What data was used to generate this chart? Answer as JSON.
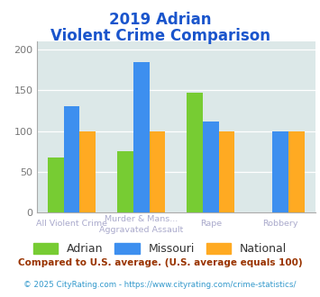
{
  "title_line1": "2019 Adrian",
  "title_line2": "Violent Crime Comparison",
  "series": {
    "Adrian": [
      68,
      75,
      147,
      0
    ],
    "Missouri": [
      130,
      185,
      112,
      99
    ],
    "National": [
      100,
      100,
      100,
      100
    ]
  },
  "colors": {
    "Adrian": "#77cc33",
    "Missouri": "#3d8fef",
    "National": "#ffaa22"
  },
  "ylim": [
    0,
    210
  ],
  "yticks": [
    0,
    50,
    100,
    150,
    200
  ],
  "plot_bg": "#dce8e8",
  "title_color": "#1a55cc",
  "xlabel_color": "#aaaacc",
  "xlabels_line1": [
    "All Violent Crime",
    "Murder & Mans...",
    "Rape",
    "Robbery"
  ],
  "xlabels_line2": [
    "",
    "Aggravated Assault",
    "",
    ""
  ],
  "legend_labels": [
    "Adrian",
    "Missouri",
    "National"
  ],
  "footnote1": "Compared to U.S. average. (U.S. average equals 100)",
  "footnote2": "© 2025 CityRating.com - https://www.cityrating.com/crime-statistics/",
  "footnote1_color": "#993300",
  "footnote2_color": "#3399cc"
}
